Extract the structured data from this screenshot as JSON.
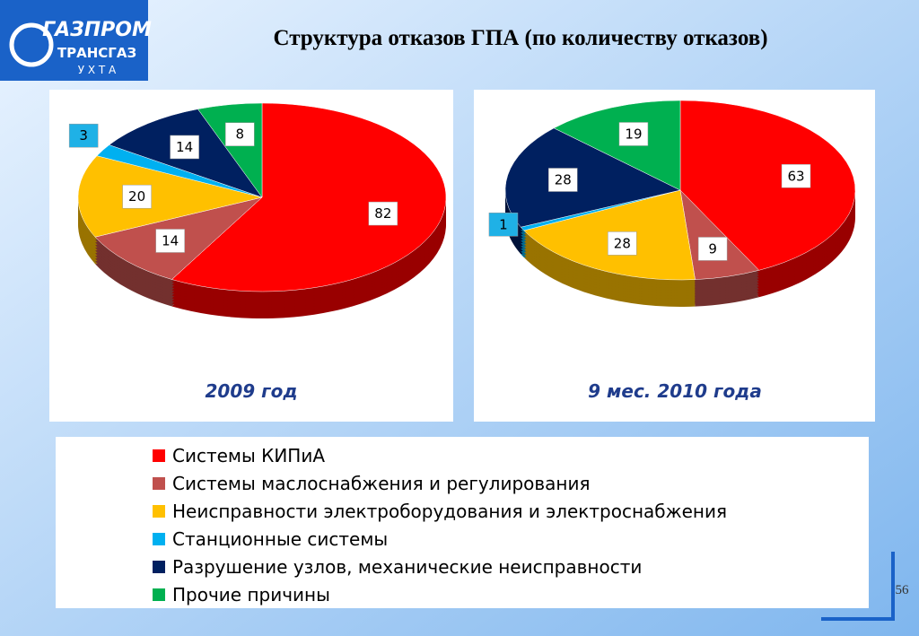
{
  "title": "Структура отказов ГПА (по количеству отказов)",
  "logo": {
    "line1": "ГАЗПРОМ",
    "line2": "ТРАНСГАЗ",
    "line3": "У Х Т А"
  },
  "page_number": "56",
  "legend": {
    "categories": [
      "Системы КИПиА",
      "Системы маслоснабжения и регулирования",
      "Неисправности электроборудования и электроснабжения",
      "Станционные системы",
      "Разрушение узлов, механические неисправности",
      "Прочие причины"
    ],
    "colors": [
      "#ff0000",
      "#c0504d",
      "#ffc000",
      "#00b0f0",
      "#002060",
      "#00b050"
    ]
  },
  "chart_data": [
    {
      "type": "pie",
      "title": "2009 год",
      "values": [
        82,
        14,
        20,
        3,
        14,
        8
      ]
    },
    {
      "type": "pie",
      "title": "9 мес. 2010 года",
      "values": [
        63,
        9,
        28,
        1,
        28,
        19
      ]
    }
  ]
}
